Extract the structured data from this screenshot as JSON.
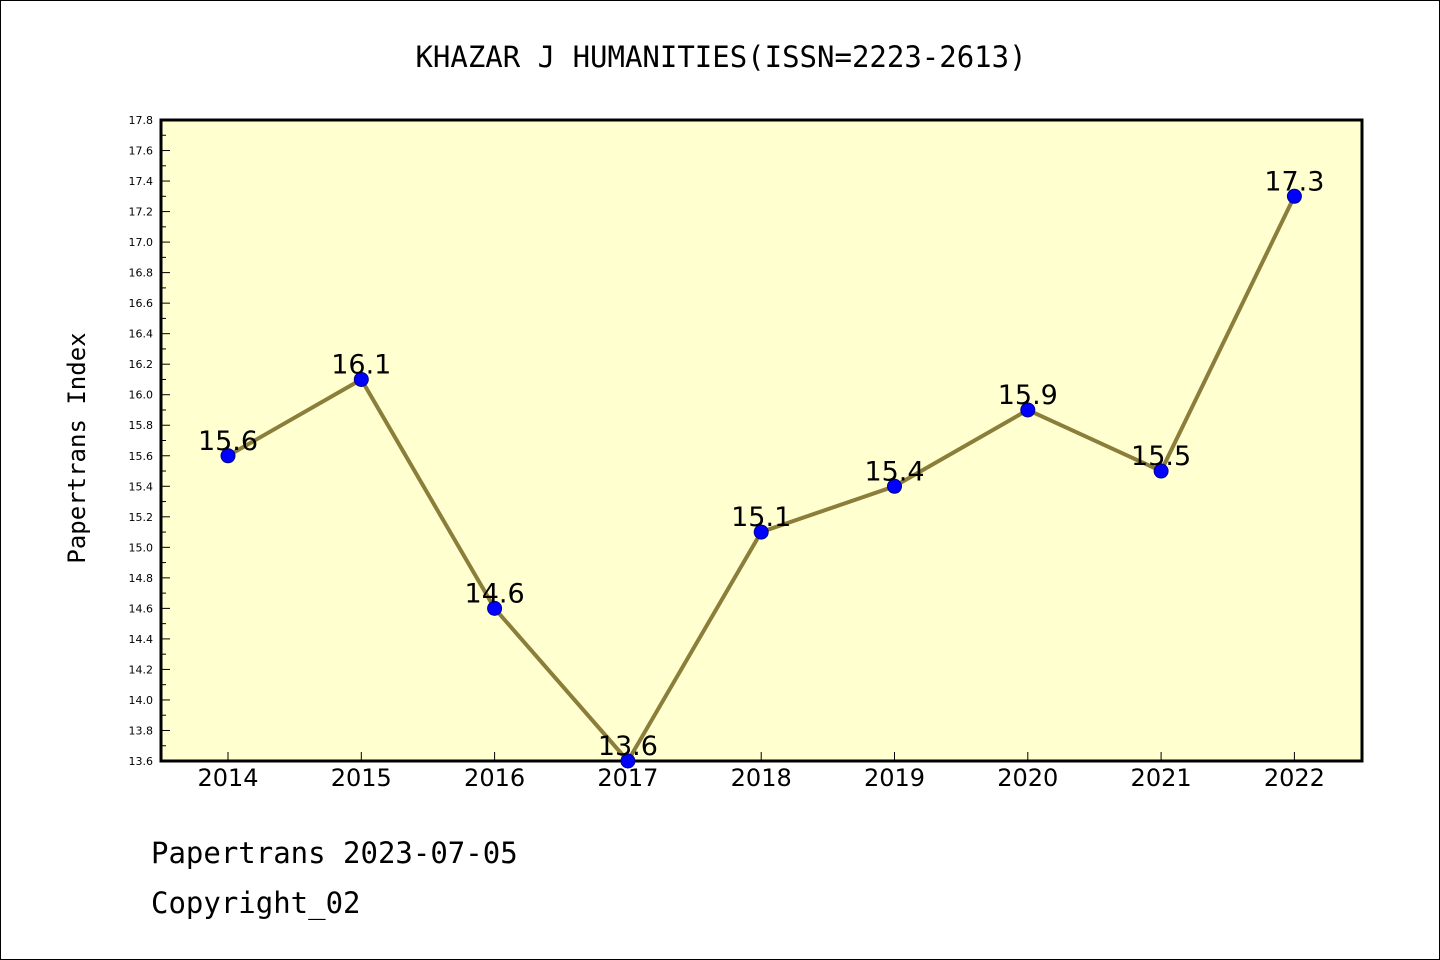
{
  "chart_data": {
    "type": "line",
    "title": "KHAZAR J HUMANITIES(ISSN=2223-2613)",
    "ylabel": "Papertrans Index",
    "xlabel": "",
    "categories": [
      "2014",
      "2015",
      "2016",
      "2017",
      "2018",
      "2019",
      "2020",
      "2021",
      "2022"
    ],
    "series": [
      {
        "values": [
          15.6,
          16.1,
          14.6,
          13.6,
          15.1,
          15.4,
          15.9,
          15.5,
          17.3
        ],
        "data_labels": [
          "15.6",
          "16.1",
          "14.6",
          "13.6",
          "15.1",
          "15.4",
          "15.9",
          "15.5",
          "17.3"
        ]
      }
    ],
    "ylim": [
      13.6,
      17.8
    ],
    "yticks": [
      "13.6",
      "13.8",
      "14.0",
      "14.2",
      "14.4",
      "14.6",
      "14.8",
      "15.0",
      "15.2",
      "15.4",
      "15.6",
      "15.8",
      "16.0",
      "16.2",
      "16.4",
      "16.6",
      "16.8",
      "17.0",
      "17.2",
      "17.4",
      "17.6",
      "17.8"
    ],
    "grid": false,
    "legend": "none",
    "colors": {
      "plot_background": "#ffffd0",
      "line": "#8b7d3a",
      "marker": "#0000ff",
      "axis": "#000000"
    }
  },
  "footer": {
    "date_line": "Papertrans 2023-07-05",
    "copyright": "Copyright_02"
  }
}
